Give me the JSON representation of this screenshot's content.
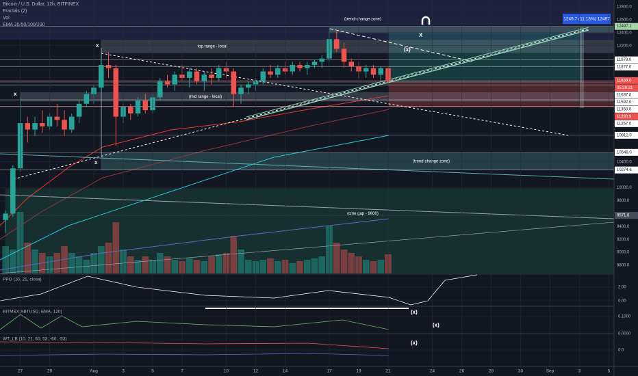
{
  "chart_data": {
    "type": "candlestick",
    "title": "Bitcoin / U.S. Dollar, 12h, BITFINEX",
    "legend": [
      "Fractals (2)",
      "Vol",
      "EMA 20/50/100/200"
    ],
    "up_color": "#26a69a",
    "down_color": "#ef5350",
    "open": [
      9500,
      9600,
      10300,
      11000,
      10900,
      11000,
      10950,
      11100,
      11050,
      10900,
      11100,
      11300,
      11450,
      11550,
      11900,
      11850,
      11100,
      11250,
      11150,
      11350,
      11200,
      11400,
      11650,
      11600,
      11750,
      11700,
      11800,
      11650,
      11750,
      11700,
      11850,
      11800,
      11450,
      11550,
      11600,
      11650,
      11800,
      11750,
      11850,
      11800,
      11900,
      11850,
      11900,
      11950,
      12000,
      12300,
      12150,
      11950,
      11880,
      11800,
      11850,
      11750,
      11850
    ],
    "high": [
      9650,
      10350,
      11400,
      11100,
      11100,
      11200,
      11150,
      11300,
      11200,
      11150,
      11350,
      11500,
      11600,
      12000,
      12100,
      11900,
      11300,
      11300,
      11400,
      11450,
      11450,
      11700,
      11750,
      11800,
      11900,
      11850,
      11850,
      11800,
      11850,
      11900,
      11950,
      11850,
      11600,
      11650,
      11700,
      11850,
      11900,
      11900,
      11950,
      11950,
      11950,
      11950,
      11980,
      12050,
      12470,
      12450,
      12250,
      12000,
      11950,
      11900,
      11900,
      11880,
      11880
    ],
    "low": [
      9300,
      9550,
      10250,
      10700,
      10800,
      10850,
      10900,
      10950,
      10800,
      10850,
      11000,
      11250,
      11300,
      11500,
      11700,
      10650,
      11000,
      11050,
      11100,
      11150,
      11150,
      11350,
      11550,
      11500,
      11650,
      11550,
      11600,
      11500,
      11600,
      11650,
      11700,
      11250,
      11300,
      11450,
      11500,
      11600,
      11700,
      11700,
      11750,
      11750,
      11800,
      11750,
      11850,
      11850,
      11950,
      12100,
      11850,
      11800,
      11700,
      11700,
      11700,
      11650,
      11580
    ],
    "close": [
      9600,
      10300,
      11000,
      10900,
      11000,
      10950,
      11100,
      11050,
      10900,
      11100,
      11300,
      11450,
      11550,
      11900,
      11850,
      11100,
      11250,
      11150,
      11350,
      11200,
      11400,
      11650,
      11600,
      11750,
      11700,
      11800,
      11650,
      11750,
      11700,
      11850,
      11800,
      11450,
      11550,
      11600,
      11650,
      11800,
      11750,
      11850,
      11800,
      11900,
      11850,
      11900,
      11950,
      12000,
      12300,
      12150,
      11950,
      11880,
      11800,
      11850,
      11750,
      11850,
      11650
    ],
    "volume": [
      40,
      35,
      90,
      45,
      35,
      30,
      25,
      30,
      40,
      30,
      25,
      20,
      30,
      40,
      45,
      75,
      35,
      25,
      20,
      25,
      20,
      30,
      25,
      20,
      18,
      22,
      20,
      18,
      25,
      28,
      30,
      55,
      35,
      20,
      18,
      20,
      22,
      18,
      20,
      15,
      18,
      20,
      22,
      25,
      70,
      45,
      35,
      30,
      25,
      20,
      18,
      20,
      28
    ],
    "vlim": [
      0,
      100
    ],
    "xlim": [
      -0.75,
      82.7
    ],
    "xticks": [
      {
        "value": 2,
        "label": "27"
      },
      {
        "value": 6,
        "label": "29"
      },
      {
        "value": 12,
        "label": "Aug"
      },
      {
        "value": 16,
        "label": "3"
      },
      {
        "value": 20,
        "label": "5"
      },
      {
        "value": 24,
        "label": "7"
      },
      {
        "value": 30,
        "label": "10"
      },
      {
        "value": 34,
        "label": "12"
      },
      {
        "value": 38,
        "label": "14"
      },
      {
        "value": 44,
        "label": "17"
      },
      {
        "value": 48,
        "label": "19"
      },
      {
        "value": 52,
        "label": "21"
      },
      {
        "value": 58,
        "label": "24"
      },
      {
        "value": 62,
        "label": "26"
      },
      {
        "value": 66,
        "label": "28"
      },
      {
        "value": 70,
        "label": "30"
      },
      {
        "value": 74,
        "label": "Sep"
      },
      {
        "value": 78,
        "label": "3"
      },
      {
        "value": 82,
        "label": "5"
      }
    ],
    "ylim": [
      8673,
      12906
    ],
    "yticks": [
      {
        "value": 12800,
        "label": "12800.0"
      },
      {
        "value": 12600,
        "label": "12600.0"
      },
      {
        "value": 12400,
        "label": "12400.0"
      },
      {
        "value": 12200,
        "label": "12200.0"
      },
      {
        "value": 10400,
        "label": "10400.0"
      },
      {
        "value": 10000,
        "label": "10000.0"
      },
      {
        "value": 9800,
        "label": "9800.0"
      },
      {
        "value": 9400,
        "label": "9400.0"
      },
      {
        "value": 9200,
        "label": "9200.0"
      },
      {
        "value": 9000,
        "label": "9000.0"
      },
      {
        "value": 8800,
        "label": "8800.0"
      }
    ],
    "price_labels": [
      {
        "value": 12497.1,
        "label": "12497.1",
        "color": "#a5d6a7"
      },
      {
        "value": 11979,
        "label": "11979.0",
        "color": "#ffffff"
      },
      {
        "value": 11877,
        "label": "11877.0",
        "color": "#ffffff"
      },
      {
        "value": 11659,
        "label": "11659.0",
        "color": "#ef5350"
      },
      {
        "value": 11637,
        "label": "11637.0",
        "color": "#ffffff"
      },
      {
        "value": 11592,
        "label": "11592.0",
        "color": "#ffffff"
      },
      {
        "value": 11360,
        "label": "11360.0",
        "color": "#ffffff"
      },
      {
        "value": 11260.9,
        "label": "11260.9",
        "color": "#ef5350"
      },
      {
        "value": 11257,
        "label": "11257.0",
        "color": "#ffffff"
      },
      {
        "value": 10812,
        "label": "10812.0",
        "color": "#ffffff"
      },
      {
        "value": 10548,
        "label": "10548.0",
        "color": "#ffffff"
      },
      {
        "value": 10274.6,
        "label": "10274.6",
        "color": "#ffffff"
      },
      {
        "value": 9571.6,
        "label": "9571.6",
        "color": "#4a4e5a"
      }
    ],
    "countdown": "05:29:21",
    "zones": [
      {
        "label": "top range - local",
        "low": 12090,
        "high": 12285,
        "from": 13,
        "color": "#9aa3b5"
      },
      {
        "label": "(mid range - local)",
        "low": 11340,
        "high": 11475,
        "from": 2,
        "color": "#9aa3b5"
      },
      {
        "label": "(trend-change zone)",
        "low": 12400,
        "high": 12485,
        "from": 44,
        "color": "#8fd3b8"
      },
      {
        "label": "(trend-change zone)",
        "low": 10280,
        "high": 10535,
        "from": 13,
        "color": "#5fb3b3"
      },
      {
        "label": "(cme gap - 9600)",
        "low": 8673,
        "high": 9985,
        "from": 0,
        "color": "#1f7a5c"
      }
    ],
    "measure": "1249.7 (11.13%) 12497",
    "annotations": [
      "x",
      "x",
      "x",
      "(x)",
      "X",
      "(x)",
      "(x)",
      "(x)"
    ],
    "panes": [
      {
        "label": "PPO (10, 21, close)",
        "ylim": [
          -0.8,
          3.8
        ],
        "yticks": [
          {
            "value": 2,
            "label": "2.00"
          },
          {
            "value": 0,
            "label": "0.00"
          }
        ]
      },
      {
        "label": "BITMEX:XBTUSD, EMA, 120)",
        "ylim": [
          0,
          0.156
        ],
        "yticks": [
          {
            "value": 0.1,
            "label": "0.1000"
          },
          {
            "value": 0,
            "label": "0.0000"
          }
        ]
      },
      {
        "label": "WT_LB (10, 21, 60, 53, -60, -53)",
        "ylim": [
          -0.2,
          0.2
        ],
        "yticks": [
          {
            "value": 0,
            "label": "0.0"
          }
        ]
      }
    ]
  }
}
